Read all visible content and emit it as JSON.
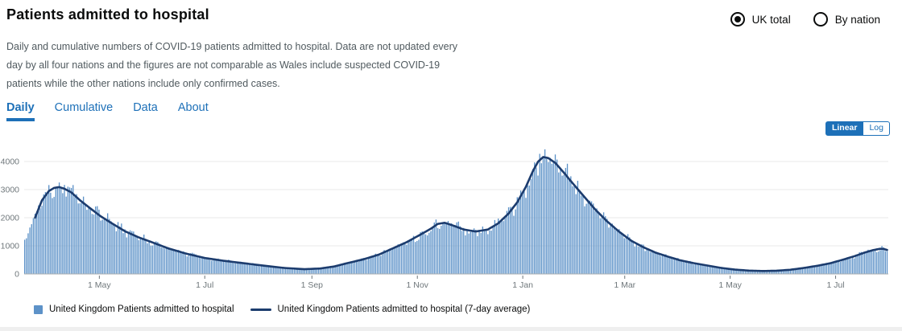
{
  "header": {
    "title": "Patients admitted to hospital",
    "description": "Daily and cumulative numbers of COVID-19 patients admitted to hospital. Data are not updated every day by all four nations and the figures are not comparable as Wales include suspected COVID-19 patients while the other nations include only confirmed cases.",
    "radios": [
      {
        "label": "UK total",
        "selected": true
      },
      {
        "label": "By nation",
        "selected": false
      }
    ]
  },
  "tabs": [
    {
      "label": "Daily",
      "active": true
    },
    {
      "label": "Cumulative",
      "active": false
    },
    {
      "label": "Data",
      "active": false
    },
    {
      "label": "About",
      "active": false
    }
  ],
  "scale_toggle": [
    {
      "label": "Linear",
      "selected": true
    },
    {
      "label": "Log",
      "selected": false
    }
  ],
  "colors": {
    "accent_blue": "#1d70b8",
    "bar": "#5d92c8",
    "line": "#1c3c6e",
    "grid": "#e9e9e9",
    "axis_baseline": "#a8adb0",
    "axis_text": "#6f777b",
    "text_dark": "#0b0c0c",
    "text_gray": "#505a5f"
  },
  "chart_data": {
    "type": "bar",
    "title": "Patients admitted to hospital",
    "xlabel": "",
    "ylabel": "",
    "grid": true,
    "legend_position": "bottom",
    "x_range": [
      "2020-03-19",
      "2021-07-31"
    ],
    "y_ticks": [
      0,
      1000,
      2000,
      3000,
      4000
    ],
    "y_max": 4514,
    "x_ticks": [
      {
        "date": "2020-05-01",
        "label": "1 May"
      },
      {
        "date": "2020-07-01",
        "label": "1 Jul"
      },
      {
        "date": "2020-09-01",
        "label": "1 Sep"
      },
      {
        "date": "2020-11-01",
        "label": "1 Nov"
      },
      {
        "date": "2021-01-01",
        "label": "1 Jan"
      },
      {
        "date": "2021-03-01",
        "label": "1 Mar"
      },
      {
        "date": "2021-05-01",
        "label": "1 May"
      },
      {
        "date": "2021-07-01",
        "label": "1 Jul"
      }
    ],
    "bar_jitter": {
      "weekly_amplitude": 0.055,
      "random_amplitude": 0.09,
      "seed": 1729
    },
    "series": [
      {
        "name": "United Kingdom Patients admitted to hospital",
        "type": "bar",
        "note": "daily values fluctuate around the 7-day average curve"
      },
      {
        "name": "United Kingdom Patients admitted to hospital (7-day average)",
        "type": "line",
        "line_start": "2020-03-25",
        "keypoints": [
          [
            "2020-03-19",
            1250
          ],
          [
            "2020-03-22",
            1600
          ],
          [
            "2020-03-25",
            2000
          ],
          [
            "2020-03-29",
            2620
          ],
          [
            "2020-04-02",
            2950
          ],
          [
            "2020-04-05",
            3060
          ],
          [
            "2020-04-08",
            3090
          ],
          [
            "2020-04-11",
            3030
          ],
          [
            "2020-04-15",
            2900
          ],
          [
            "2020-04-20",
            2620
          ],
          [
            "2020-04-26",
            2330
          ],
          [
            "2020-05-02",
            2050
          ],
          [
            "2020-05-09",
            1780
          ],
          [
            "2020-05-16",
            1520
          ],
          [
            "2020-05-24",
            1300
          ],
          [
            "2020-06-01",
            1120
          ],
          [
            "2020-06-10",
            910
          ],
          [
            "2020-06-20",
            730
          ],
          [
            "2020-07-01",
            570
          ],
          [
            "2020-07-12",
            470
          ],
          [
            "2020-07-24",
            380
          ],
          [
            "2020-08-05",
            290
          ],
          [
            "2020-08-16",
            215
          ],
          [
            "2020-08-28",
            170
          ],
          [
            "2020-09-06",
            195
          ],
          [
            "2020-09-14",
            265
          ],
          [
            "2020-09-22",
            390
          ],
          [
            "2020-10-01",
            520
          ],
          [
            "2020-10-10",
            690
          ],
          [
            "2020-10-18",
            910
          ],
          [
            "2020-10-26",
            1130
          ],
          [
            "2020-11-03",
            1400
          ],
          [
            "2020-11-09",
            1610
          ],
          [
            "2020-11-13",
            1780
          ],
          [
            "2020-11-17",
            1820
          ],
          [
            "2020-11-22",
            1720
          ],
          [
            "2020-11-28",
            1580
          ],
          [
            "2020-12-05",
            1510
          ],
          [
            "2020-12-12",
            1580
          ],
          [
            "2020-12-18",
            1800
          ],
          [
            "2020-12-24",
            2150
          ],
          [
            "2020-12-29",
            2550
          ],
          [
            "2021-01-03",
            3100
          ],
          [
            "2021-01-07",
            3650
          ],
          [
            "2021-01-10",
            3990
          ],
          [
            "2021-01-13",
            4160
          ],
          [
            "2021-01-16",
            4120
          ],
          [
            "2021-01-20",
            3950
          ],
          [
            "2021-01-25",
            3600
          ],
          [
            "2021-01-30",
            3230
          ],
          [
            "2021-02-05",
            2800
          ],
          [
            "2021-02-12",
            2300
          ],
          [
            "2021-02-19",
            1870
          ],
          [
            "2021-02-26",
            1500
          ],
          [
            "2021-03-05",
            1180
          ],
          [
            "2021-03-12",
            950
          ],
          [
            "2021-03-19",
            760
          ],
          [
            "2021-03-26",
            620
          ],
          [
            "2021-04-02",
            490
          ],
          [
            "2021-04-10",
            385
          ],
          [
            "2021-04-18",
            300
          ],
          [
            "2021-04-26",
            215
          ],
          [
            "2021-05-04",
            155
          ],
          [
            "2021-05-12",
            120
          ],
          [
            "2021-05-20",
            105
          ],
          [
            "2021-05-28",
            115
          ],
          [
            "2021-06-05",
            150
          ],
          [
            "2021-06-13",
            215
          ],
          [
            "2021-06-21",
            295
          ],
          [
            "2021-06-28",
            380
          ],
          [
            "2021-07-05",
            500
          ],
          [
            "2021-07-12",
            630
          ],
          [
            "2021-07-18",
            760
          ],
          [
            "2021-07-23",
            850
          ],
          [
            "2021-07-27",
            895
          ],
          [
            "2021-07-29",
            890
          ],
          [
            "2021-07-31",
            855
          ]
        ]
      }
    ]
  }
}
